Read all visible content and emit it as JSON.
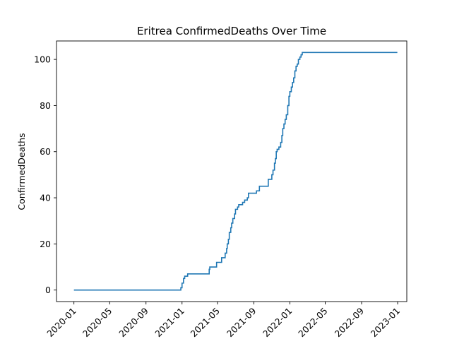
{
  "chart_data": {
    "type": "line",
    "title": "Eritrea  ConfirmedDeaths Over Time",
    "xlabel": "",
    "ylabel": "ConfirmedDeaths",
    "x_ticks": [
      "2020-01",
      "2020-05",
      "2020-09",
      "2021-01",
      "2021-05",
      "2021-09",
      "2022-01",
      "2022-05",
      "2022-09",
      "2023-01"
    ],
    "y_ticks": [
      0,
      20,
      40,
      60,
      80,
      100
    ],
    "xlim": [
      "2019-11-03",
      "2023-02-01"
    ],
    "ylim": [
      -5,
      108
    ],
    "grid": false,
    "legend": "none",
    "color": "#1f77b4",
    "series": [
      {
        "x": [
          "2020-01-01",
          "2020-12-27",
          "2020-12-28",
          "2021-01-01",
          "2021-01-04",
          "2021-01-06",
          "2021-01-10",
          "2021-01-15",
          "2021-01-20",
          "2021-02-15",
          "2021-03-01",
          "2021-03-10",
          "2021-03-31",
          "2021-04-03",
          "2021-04-05",
          "2021-04-25",
          "2021-04-28",
          "2021-05-03",
          "2021-05-15",
          "2021-05-25",
          "2021-05-27",
          "2021-06-01",
          "2021-06-03",
          "2021-06-07",
          "2021-06-10",
          "2021-06-15",
          "2021-06-18",
          "2021-06-22",
          "2021-06-25",
          "2021-06-28",
          "2021-07-01",
          "2021-07-05",
          "2021-07-08",
          "2021-07-12",
          "2021-07-17",
          "2021-07-20",
          "2021-07-25",
          "2021-08-01",
          "2021-08-10",
          "2021-08-14",
          "2021-08-20",
          "2021-09-01",
          "2021-09-10",
          "2021-09-20",
          "2021-10-01",
          "2021-10-10",
          "2021-10-20",
          "2021-11-01",
          "2021-11-05",
          "2021-11-10",
          "2021-11-13",
          "2021-11-16",
          "2021-11-19",
          "2021-11-25",
          "2021-12-01",
          "2021-12-05",
          "2021-12-08",
          "2021-12-12",
          "2021-12-16",
          "2021-12-20",
          "2021-12-25",
          "2021-12-29",
          "2022-01-01",
          "2022-01-06",
          "2022-01-10",
          "2022-01-14",
          "2022-01-18",
          "2022-01-22",
          "2022-01-26",
          "2022-01-30",
          "2022-02-04",
          "2022-02-08",
          "2022-02-12",
          "2022-02-16",
          "2022-02-20",
          "2022-02-25",
          "2022-03-01",
          "2022-06-01",
          "2022-09-01",
          "2022-12-31"
        ],
        "y": [
          0,
          0,
          1,
          3,
          3,
          5,
          6,
          6,
          7,
          7,
          7,
          7,
          7,
          9,
          10,
          10,
          12,
          12,
          14,
          14,
          16,
          18,
          20,
          22,
          25,
          27,
          29,
          31,
          31,
          33,
          35,
          35,
          36,
          37,
          37,
          37,
          38,
          39,
          40,
          42,
          42,
          42,
          43,
          45,
          45,
          45,
          48,
          50,
          52,
          55,
          57,
          60,
          61,
          62,
          64,
          67,
          70,
          72,
          74,
          76,
          80,
          84,
          86,
          88,
          90,
          92,
          95,
          97,
          98,
          100,
          101,
          102,
          103,
          103,
          103,
          103,
          103,
          103,
          103,
          103
        ]
      }
    ]
  }
}
